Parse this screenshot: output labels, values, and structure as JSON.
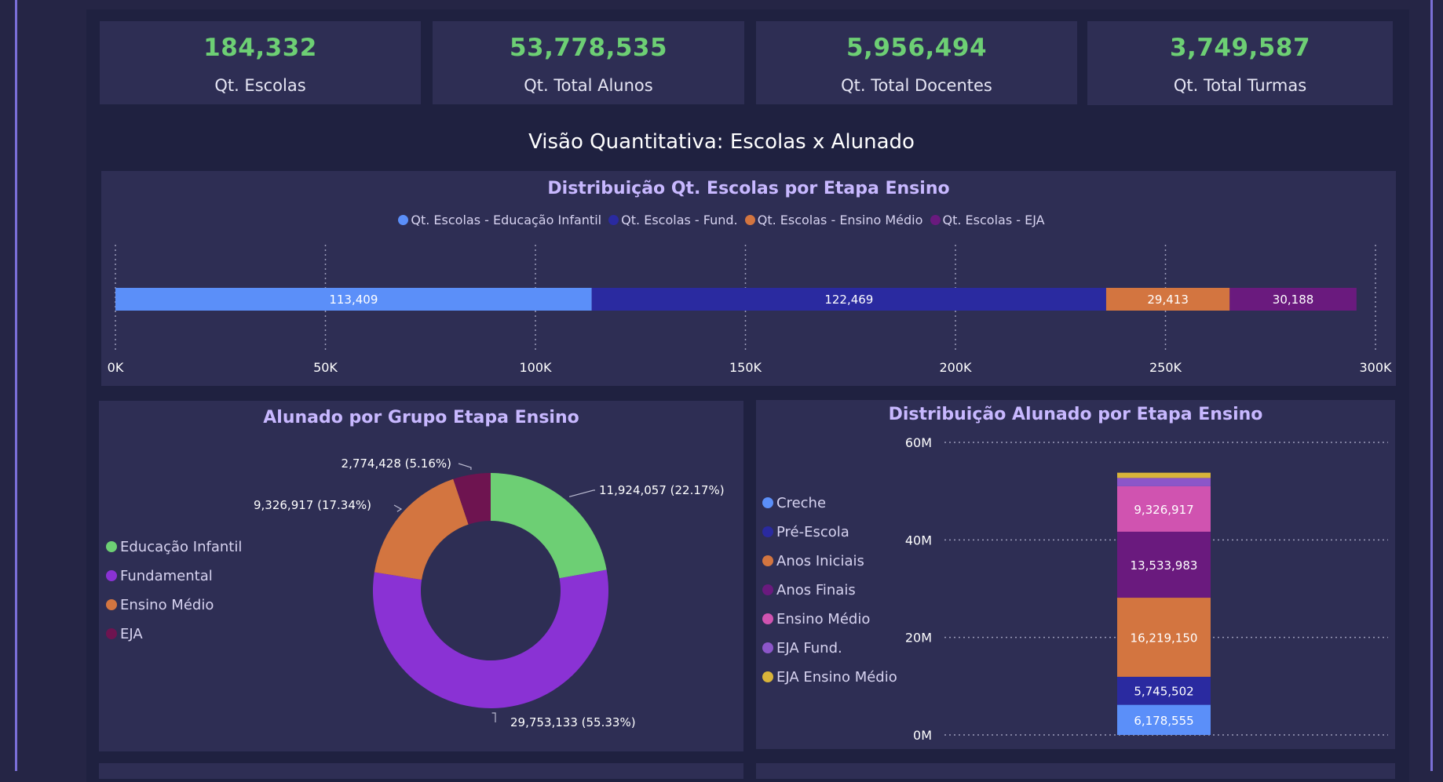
{
  "kpis": [
    {
      "value": "184,332",
      "label": "Qt. Escolas"
    },
    {
      "value": "53,778,535",
      "label": "Qt. Total Alunos"
    },
    {
      "value": "5,956,494",
      "label": "Qt. Total Docentes"
    },
    {
      "value": "3,749,587",
      "label": "Qt. Total Turmas"
    }
  ],
  "section_title": "Visão Quantitativa: Escolas x Alunado",
  "colors": {
    "kpi_value": "#6dcf74",
    "blue": "#5b8ff9",
    "navy": "#2a2aa0",
    "orange": "#d37540",
    "purple": "#6a1a7e",
    "green": "#6dcf74",
    "violet": "#8a32d4",
    "maroon": "#6e1450",
    "pink": "#d053b0",
    "lilac": "#8c56c9",
    "gold": "#d9b43a"
  },
  "chart_data": [
    {
      "type": "bar",
      "orientation": "horizontal-stacked",
      "title": "Distribuição Qt. Escolas por Etapa Ensino",
      "legend_position": "top-center",
      "series": [
        {
          "name": "Qt. Escolas - Educação Infantil",
          "value": 113409,
          "label": "113,409",
          "color": "#5b8ff9"
        },
        {
          "name": "Qt. Escolas - Fund.",
          "value": 122469,
          "label": "122,469",
          "color": "#2a2aa0"
        },
        {
          "name": "Qt. Escolas - Ensino Médio",
          "value": 29413,
          "label": "29,413",
          "color": "#d37540"
        },
        {
          "name": "Qt. Escolas - EJA",
          "value": 30188,
          "label": "30,188",
          "color": "#6a1a7e"
        }
      ],
      "xlim": [
        0,
        300000
      ],
      "ticks": [
        0,
        50000,
        100000,
        150000,
        200000,
        250000,
        300000
      ],
      "tick_labels": [
        "0K",
        "50K",
        "100K",
        "150K",
        "200K",
        "250K",
        "300K"
      ],
      "grid": true
    },
    {
      "type": "pie",
      "subtype": "donut",
      "title": "Alunado por Grupo Etapa Ensino",
      "legend_position": "left",
      "slices": [
        {
          "name": "Educação Infantil",
          "value": 11924057,
          "label": "11,924,057 (22.17%)",
          "color": "#6dcf74"
        },
        {
          "name": "Fundamental",
          "value": 29753133,
          "label": "29,753,133 (55.33%)",
          "color": "#8a32d4"
        },
        {
          "name": "Ensino Médio",
          "value": 9326917,
          "label": "9,326,917 (17.34%)",
          "color": "#d37540"
        },
        {
          "name": "EJA",
          "value": 2774428,
          "label": "2,774,428 (5.16%)",
          "color": "#6e1450"
        }
      ]
    },
    {
      "type": "bar",
      "orientation": "vertical-stacked",
      "title": "Distribuição Alunado por Etapa Ensino",
      "legend_position": "left",
      "series": [
        {
          "name": "Creche",
          "value": 6178555,
          "label": "6,178,555",
          "color": "#5b8ff9"
        },
        {
          "name": "Pré-Escola",
          "value": 5745502,
          "label": "5,745,502",
          "color": "#2a2aa0"
        },
        {
          "name": "Anos Iniciais",
          "value": 16219150,
          "label": "16,219,150",
          "color": "#d37540"
        },
        {
          "name": "Anos Finais",
          "value": 13533983,
          "label": "13,533,983",
          "color": "#6a1a7e"
        },
        {
          "name": "Ensino Médio",
          "value": 9326917,
          "label": "9,326,917",
          "color": "#d053b0"
        },
        {
          "name": "EJA Fund.",
          "value": 1700000,
          "label": "",
          "color": "#8c56c9"
        },
        {
          "name": "EJA Ensino Médio",
          "value": 1074428,
          "label": "",
          "color": "#d9b43a"
        }
      ],
      "ylim": [
        0,
        60000000
      ],
      "ticks": [
        0,
        20000000,
        40000000,
        60000000
      ],
      "tick_labels": [
        "0M",
        "20M",
        "40M",
        "60M"
      ],
      "grid": true
    }
  ]
}
